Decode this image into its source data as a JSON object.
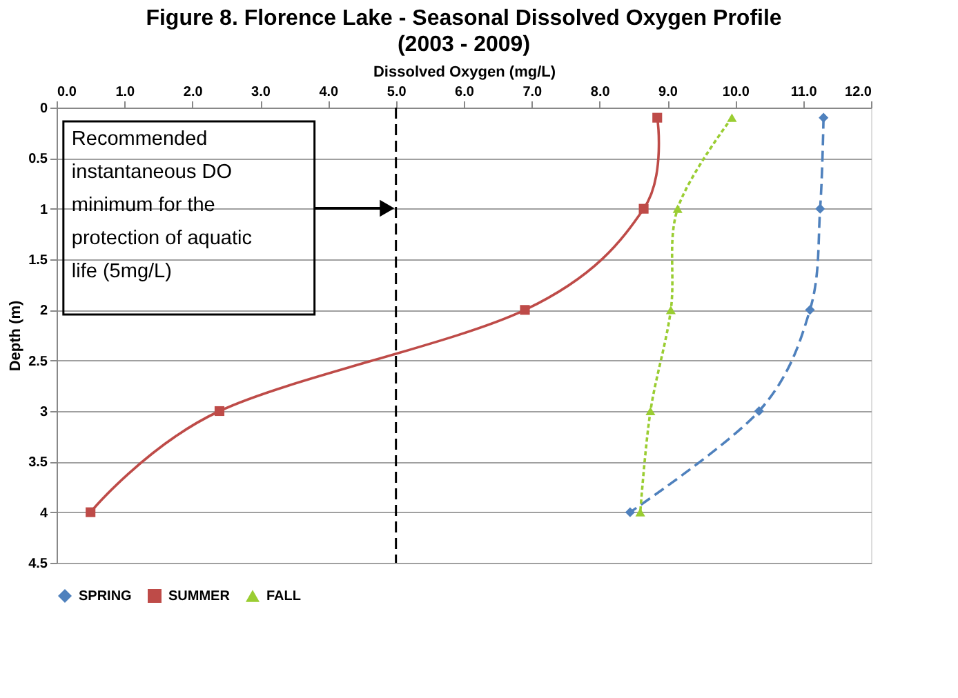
{
  "chart_data": {
    "type": "line",
    "title": "Figure 8. Florence Lake - Seasonal Dissolved Oxygen Profile",
    "subtitle": "(2003 - 2009)",
    "xlabel": "Dissolved Oxygen (mg/L)",
    "ylabel": "Depth (m)",
    "xlim": [
      0,
      12
    ],
    "xticks": [
      {
        "value": 0,
        "label": "0.0"
      },
      {
        "value": 1,
        "label": "1.0"
      },
      {
        "value": 2,
        "label": "2.0"
      },
      {
        "value": 3,
        "label": "3.0"
      },
      {
        "value": 4,
        "label": "4.0"
      },
      {
        "value": 5,
        "label": "5.0"
      },
      {
        "value": 6,
        "label": "6.0"
      },
      {
        "value": 7,
        "label": "7.0"
      },
      {
        "value": 8,
        "label": "8.0"
      },
      {
        "value": 9,
        "label": "9.0"
      },
      {
        "value": 10,
        "label": "10.0"
      },
      {
        "value": 11,
        "label": "11.0"
      },
      {
        "value": 12,
        "label": "12.0"
      }
    ],
    "ylim": [
      4.5,
      0
    ],
    "yticks": [
      0,
      0.5,
      1,
      1.5,
      2,
      2.5,
      3,
      3.5,
      4,
      4.5
    ],
    "grid": "y",
    "legend": "bottom",
    "series": [
      {
        "name": "SPRING",
        "color": "#4f81bd",
        "marker": "diamond",
        "line_style": "dashed",
        "x": [
          11.3,
          11.25,
          11.1,
          10.35,
          8.45
        ],
        "values": [
          0.1,
          1,
          2,
          3,
          4
        ]
      },
      {
        "name": "SUMMER",
        "color": "#be4b48",
        "marker": "square",
        "line_style": "solid",
        "x": [
          8.85,
          8.65,
          6.9,
          2.4,
          0.5
        ],
        "values": [
          0.1,
          1,
          2,
          3,
          4
        ]
      },
      {
        "name": "FALL",
        "color": "#9acd32",
        "marker": "triangle",
        "line_style": "dotted",
        "x": [
          9.95,
          9.15,
          9.05,
          8.75,
          8.6
        ],
        "values": [
          0.1,
          1,
          2,
          3,
          4
        ]
      }
    ],
    "ref_lines": [
      {
        "axis": "x",
        "value": 5,
        "color": "#000000",
        "line_style": "dashed"
      }
    ],
    "annotations": [
      "Recommended instantaneous DO minimum for the protection of aquatic life (5mg/L)"
    ]
  }
}
